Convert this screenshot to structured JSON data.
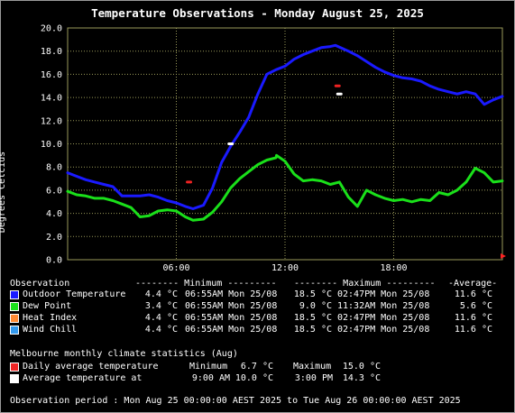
{
  "title": "Temperature Observations - Monday August 25, 2025",
  "colors": {
    "outdoor": "#1a1aff",
    "dewpoint": "#1ae01a",
    "heat_index": "#ff8a33",
    "wind_chill": "#3399ee",
    "daily_avg": "#ee2222",
    "avg_at": "#ffffff",
    "grid": "#9a9a5a"
  },
  "chart_data": {
    "type": "line",
    "title": "Temperature Observations - Monday August 25, 2025",
    "xlabel": "",
    "ylabel": "Degrees Celcius",
    "ylim": [
      0,
      20
    ],
    "yticks": [
      "0.0",
      "2.0",
      "4.0",
      "6.0",
      "8.0",
      "10.0",
      "12.0",
      "14.0",
      "16.0",
      "18.0",
      "20.0"
    ],
    "xlim_hours": [
      0,
      24
    ],
    "xticks": [
      {
        "hour": 6,
        "label": "06:00"
      },
      {
        "hour": 12,
        "label": "12:00"
      },
      {
        "hour": 18,
        "label": "18:00"
      }
    ],
    "grid": true,
    "series": [
      {
        "name": "Outdoor Temperature",
        "x": [
          0,
          0.5,
          1,
          1.5,
          2,
          2.5,
          3,
          3.5,
          4,
          4.5,
          5,
          5.5,
          6,
          6.5,
          6.92,
          7.5,
          8,
          8.5,
          9,
          9.5,
          10,
          10.5,
          11,
          11.5,
          12,
          12.5,
          13,
          13.5,
          14,
          14.5,
          14.78,
          15.5,
          16,
          16.5,
          17,
          17.5,
          18,
          18.5,
          19,
          19.5,
          20,
          20.5,
          21,
          21.5,
          22,
          22.5,
          23,
          23.5,
          24
        ],
        "y": [
          7.5,
          7.2,
          6.9,
          6.7,
          6.5,
          6.3,
          5.5,
          5.5,
          5.5,
          5.6,
          5.4,
          5.1,
          4.9,
          4.6,
          4.4,
          4.7,
          6.2,
          8.4,
          9.8,
          11.0,
          12.3,
          14.3,
          16.0,
          16.4,
          16.7,
          17.3,
          17.7,
          18.0,
          18.3,
          18.4,
          18.5,
          18.0,
          17.6,
          17.1,
          16.6,
          16.2,
          15.9,
          15.7,
          15.6,
          15.4,
          15.0,
          14.7,
          14.5,
          14.3,
          14.5,
          14.3,
          13.4,
          13.8,
          14.1
        ]
      },
      {
        "name": "Dew Point",
        "x": [
          0,
          0.5,
          1,
          1.5,
          2,
          2.5,
          3,
          3.5,
          4,
          4.5,
          5,
          5.5,
          6,
          6.5,
          6.92,
          7.5,
          8,
          8.5,
          9,
          9.5,
          10,
          10.5,
          11,
          11.5,
          11.53,
          12,
          12.5,
          13,
          13.5,
          14,
          14.5,
          15,
          15.5,
          16,
          16.5,
          17,
          17.5,
          18,
          18.5,
          19,
          19.5,
          20,
          20.5,
          21,
          21.5,
          22,
          22.5,
          23,
          23.5,
          24
        ],
        "y": [
          5.9,
          5.6,
          5.5,
          5.3,
          5.3,
          5.1,
          4.8,
          4.5,
          3.7,
          3.8,
          4.2,
          4.3,
          4.2,
          3.7,
          3.4,
          3.5,
          4.1,
          5.0,
          6.2,
          7.0,
          7.6,
          8.2,
          8.6,
          8.8,
          9.0,
          8.5,
          7.4,
          6.8,
          6.9,
          6.8,
          6.5,
          6.7,
          5.4,
          4.6,
          6.0,
          5.6,
          5.3,
          5.1,
          5.2,
          5.0,
          5.2,
          5.1,
          5.8,
          5.6,
          6.0,
          6.7,
          7.9,
          7.5,
          6.7,
          6.8
        ]
      },
      {
        "name": "Heat Index",
        "values_same_as": "Outdoor Temperature"
      },
      {
        "name": "Wind Chill",
        "values_same_as": "Outdoor Temperature"
      }
    ],
    "markers": [
      {
        "name": "Daily average temperature min",
        "hour": 6.7,
        "value": 6.7
      },
      {
        "name": "Daily average temperature max",
        "hour": 14.9,
        "value": 15.0
      },
      {
        "name": "Average temperature at 9:00 AM",
        "hour": 9,
        "value": 10.0
      },
      {
        "name": "Average temperature at 3:00 PM",
        "hour": 15,
        "value": 14.3
      }
    ]
  },
  "stats": {
    "header": {
      "observation": "Observation",
      "minimum": "-------- Minimum ---------",
      "maximum": "-------- Maximum ---------",
      "average": "-Average-"
    },
    "rows": [
      {
        "label": "Outdoor Temperature",
        "min_val": "4.4 °C",
        "min_time": "06:55AM Mon 25/08",
        "max_val": "18.5 °C",
        "max_time": "02:47PM Mon 25/08",
        "avg": "11.6 °C"
      },
      {
        "label": "Dew Point",
        "min_val": "3.4 °C",
        "min_time": "06:55AM Mon 25/08",
        "max_val": "9.0 °C",
        "max_time": "11:32AM Mon 25/08",
        "avg": "5.6 °C"
      },
      {
        "label": "Heat Index",
        "min_val": "4.4 °C",
        "min_time": "06:55AM Mon 25/08",
        "max_val": "18.5 °C",
        "max_time": "02:47PM Mon 25/08",
        "avg": "11.6 °C"
      },
      {
        "label": "Wind Chill",
        "min_val": "4.4 °C",
        "min_time": "06:55AM Mon 25/08",
        "max_val": "18.5 °C",
        "max_time": "02:47PM Mon 25/08",
        "avg": "11.6 °C"
      }
    ]
  },
  "climate": {
    "heading": "Melbourne monthly climate statistics (Aug)",
    "daily_avg": {
      "label": "Daily average temperature",
      "min_label": "Minimum",
      "min_val": "6.7 °C",
      "max_label": "Maximum",
      "max_val": "15.0 °C"
    },
    "avg_at": {
      "label": "Average temperature at",
      "t1": "9:00 AM",
      "v1": "10.0 °C",
      "t2": "3:00 PM",
      "v2": "14.3 °C"
    }
  },
  "period": "Observation period : Mon Aug 25 00:00:00 AEST 2025 to Tue Aug 26 00:00:00 AEST 2025"
}
